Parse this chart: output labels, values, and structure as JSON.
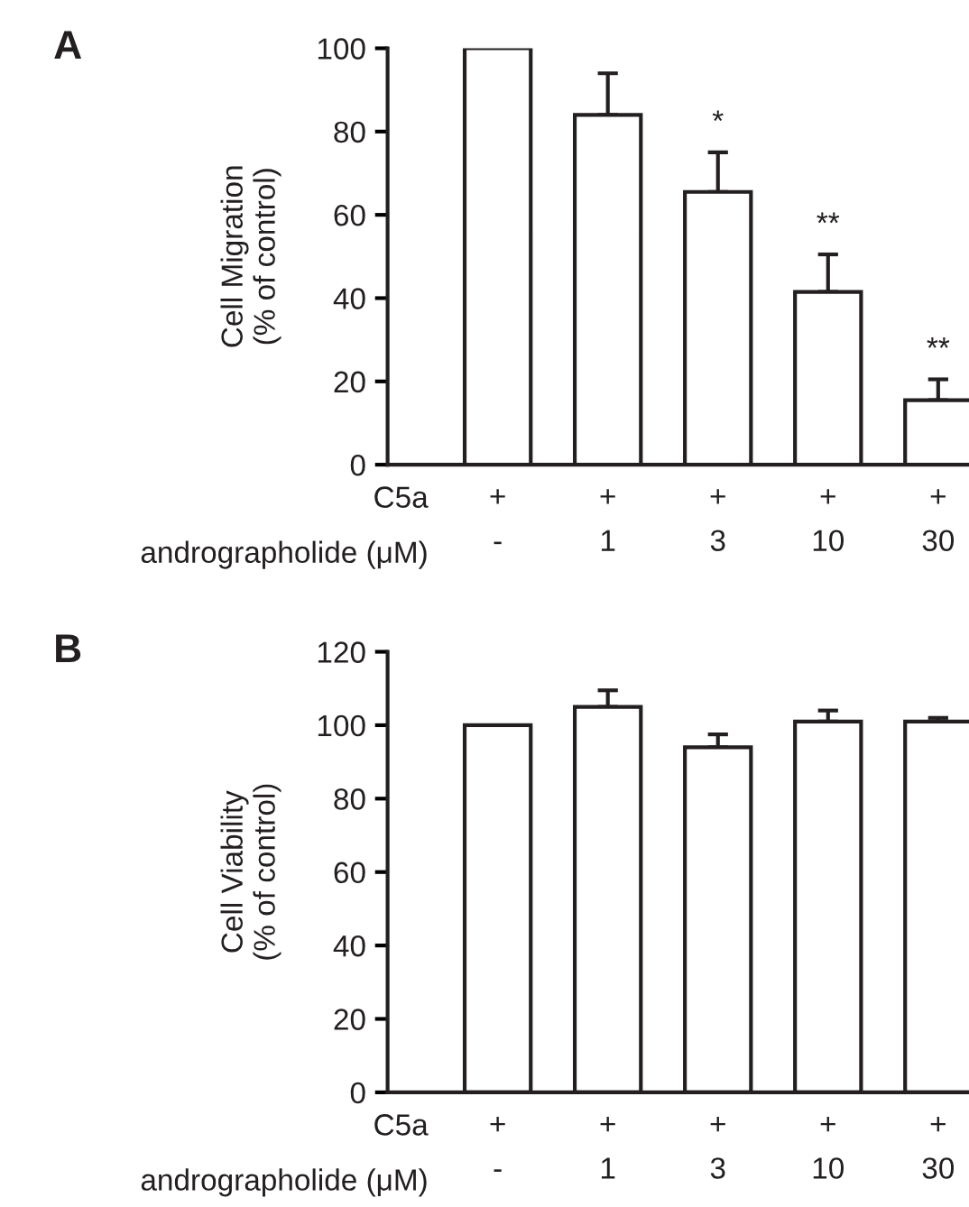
{
  "chart_data": [
    {
      "type": "bar",
      "title": "A",
      "ylabel": "Cell Migration\n(% of control)",
      "categories": [
        "+\n-",
        "+\n1",
        "+\n3",
        "+\n10",
        "+\n30"
      ],
      "series": [
        {
          "color": "#ffffff",
          "values": [
            100,
            84,
            65.5,
            41.5,
            15.5
          ],
          "errors": [
            null,
            10,
            9.5,
            9,
            5
          ]
        }
      ],
      "ylim": [
        0,
        100
      ],
      "yticks": [
        0,
        20,
        40,
        60,
        80,
        100
      ],
      "grid": false,
      "legend": false,
      "annotations": [
        "C5a",
        "andrographolide (μM)",
        {
          "text": "*",
          "x": "+\n3",
          "y": 75
        },
        {
          "text": "**",
          "x": "+\n10",
          "y": 50.5
        },
        {
          "text": "**",
          "x": "+\n30",
          "y": 20.5
        }
      ]
    },
    {
      "type": "bar",
      "title": "B",
      "ylabel": "Cell Viability\n(% of control)",
      "categories": [
        "+\n-",
        "+\n1",
        "+\n3",
        "+\n10",
        "+\n30"
      ],
      "series": [
        {
          "color": "#ffffff",
          "values": [
            100,
            105,
            94,
            101,
            101
          ],
          "errors": [
            null,
            4.5,
            3.5,
            3,
            1
          ]
        }
      ],
      "ylim": [
        0,
        120
      ],
      "yticks": [
        0,
        20,
        40,
        60,
        80,
        100,
        120
      ],
      "grid": false,
      "legend": false,
      "annotations": [
        "C5a",
        "andrographolide (μM)"
      ]
    }
  ]
}
